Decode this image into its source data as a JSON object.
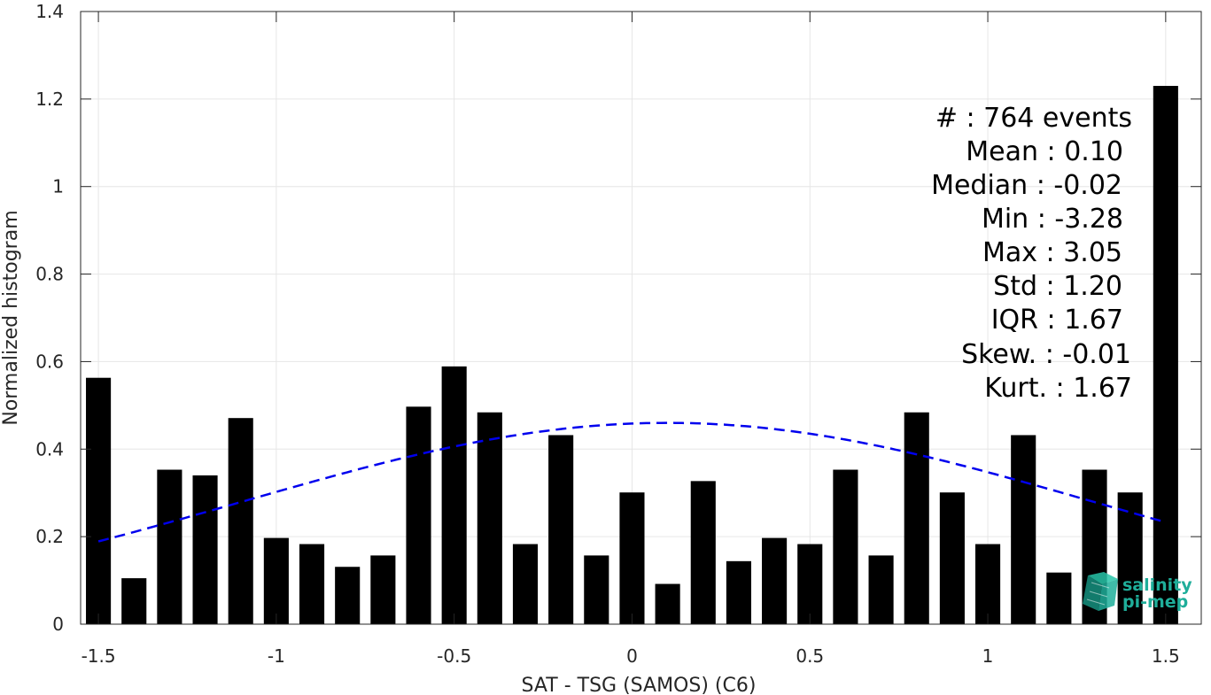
{
  "chart_data": {
    "type": "bar",
    "title": "",
    "xlabel": "SAT - TSG (SAMOS) (C6)",
    "ylabel": "Normalized histogram",
    "xlim": [
      -1.55,
      1.6
    ],
    "ylim": [
      0,
      1.4
    ],
    "grid": true,
    "x_ticks": [
      -1.5,
      -1,
      -0.5,
      0,
      0.5,
      1,
      1.5
    ],
    "x_tick_labels": [
      "-1.5",
      "-1",
      "-0.5",
      "0",
      "0.5",
      "1",
      "1.5"
    ],
    "y_ticks": [
      0,
      0.2,
      0.4,
      0.6,
      0.8,
      1.0,
      1.2,
      1.4
    ],
    "y_tick_labels": [
      "0",
      "0.2",
      "0.4",
      "0.6",
      "0.8",
      "1",
      "1.2",
      "1.4"
    ],
    "bar_width": 0.07,
    "bars": {
      "x": [
        -1.5,
        -1.4,
        -1.3,
        -1.2,
        -1.1,
        -1.0,
        -0.9,
        -0.8,
        -0.7,
        -0.6,
        -0.5,
        -0.4,
        -0.3,
        -0.2,
        -0.1,
        0.0,
        0.1,
        0.2,
        0.3,
        0.4,
        0.5,
        0.6,
        0.7,
        0.8,
        0.9,
        1.0,
        1.1,
        1.2,
        1.3,
        1.4,
        1.5
      ],
      "values": [
        0.563,
        0.105,
        0.353,
        0.34,
        0.471,
        0.197,
        0.183,
        0.131,
        0.157,
        0.497,
        0.589,
        0.484,
        0.183,
        0.432,
        0.157,
        0.301,
        0.092,
        0.327,
        0.144,
        0.197,
        0.183,
        0.353,
        0.157,
        0.484,
        0.301,
        0.183,
        0.432,
        0.118,
        0.353,
        0.301,
        1.23
      ],
      "color": "#000000"
    },
    "fit_curve": {
      "style": "dashed",
      "color": "#0000ee",
      "mean": 0.1,
      "std": 1.2,
      "peak": 0.46,
      "x_range": [
        -1.5,
        1.5
      ]
    },
    "stats": [
      "#  : 764 events",
      "Mean : 0.10",
      "Median : -0.02",
      "Min : -3.28",
      "Max : 3.05",
      "Std : 1.20",
      "IQR : 1.67",
      "Skew. : -0.01",
      "Kurt. : 1.67"
    ]
  },
  "logo": {
    "line1": "salinity",
    "line2": "pi-mep",
    "color": "#1fae9a"
  }
}
